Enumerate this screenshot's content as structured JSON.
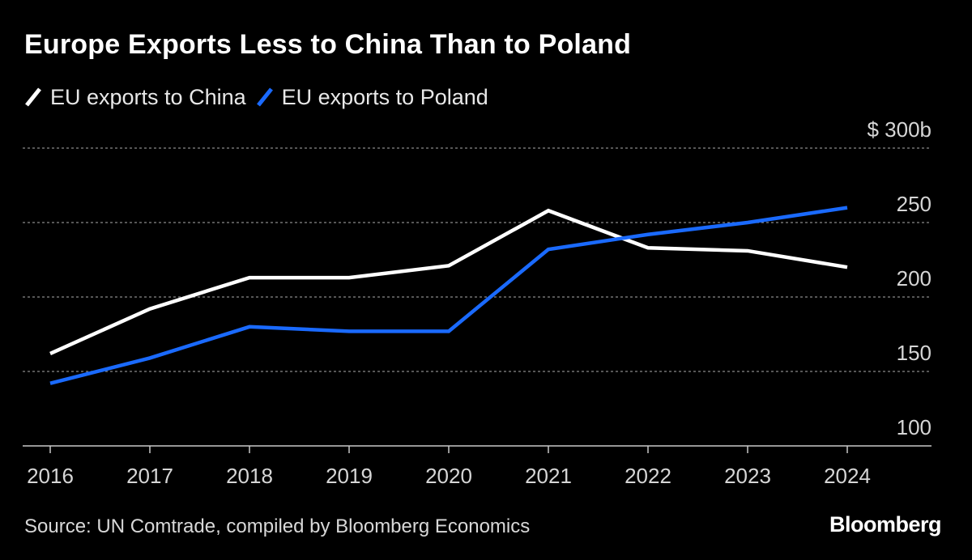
{
  "chart_data": {
    "type": "line",
    "title": "Europe Exports Less to China Than to Poland",
    "categories": [
      "2016",
      "2017",
      "2018",
      "2019",
      "2020",
      "2021",
      "2022",
      "2023",
      "2024"
    ],
    "series": [
      {
        "name": "EU exports to China",
        "color": "#ffffff",
        "values": [
          162,
          192,
          213,
          213,
          221,
          258,
          233,
          231,
          220
        ]
      },
      {
        "name": "EU exports to Poland",
        "color": "#1a6aff",
        "values": [
          142,
          159,
          180,
          177,
          177,
          232,
          242,
          250,
          260
        ]
      }
    ],
    "ylim": [
      100,
      300
    ],
    "yticks": [
      {
        "value": 300,
        "label": "$ 300b"
      },
      {
        "value": 250,
        "label": "250"
      },
      {
        "value": 200,
        "label": "200"
      },
      {
        "value": 150,
        "label": "150"
      },
      {
        "value": 100,
        "label": "100"
      }
    ],
    "gridlines": true,
    "legend_position": "top-left",
    "source": "Source: UN Comtrade, compiled by Bloomberg Economics"
  },
  "brand": "Bloomberg"
}
